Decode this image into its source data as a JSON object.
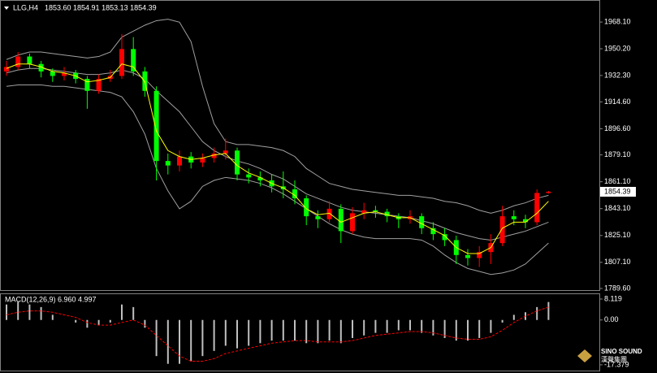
{
  "chart_data": {
    "type": "candlestick",
    "header": {
      "symbol": "LLG,H4",
      "ohlc": "1853.60 1854.91 1853.13 1854.39"
    },
    "up_color": "#ff0000",
    "down_color": "#00ff00",
    "band_color": "#a0a0a0",
    "ma_color": "#ffff00",
    "ylim": [
      1788.5,
      1974.7
    ],
    "yticks": [
      {
        "value": 1968.1,
        "label": "1968.10"
      },
      {
        "value": 1950.2,
        "label": "1950.20"
      },
      {
        "value": 1932.3,
        "label": "1932.30"
      },
      {
        "value": 1914.6,
        "label": "1914.60"
      },
      {
        "value": 1896.6,
        "label": "1896.60"
      },
      {
        "value": 1879.1,
        "label": "1879.10"
      },
      {
        "value": 1861.1,
        "label": "1861.10"
      },
      {
        "value": 1843.1,
        "label": "1843.10"
      },
      {
        "value": 1825.1,
        "label": "1825.10"
      },
      {
        "value": 1807.1,
        "label": "1807.10"
      },
      {
        "value": 1789.6,
        "label": "1789.60"
      }
    ],
    "last_price": {
      "value": 1854.39,
      "label": "1854.39"
    },
    "candles": [
      [
        1935,
        1942,
        1932,
        1938
      ],
      [
        1938,
        1948,
        1936,
        1945
      ],
      [
        1945,
        1947,
        1937,
        1940
      ],
      [
        1940,
        1942,
        1931,
        1935
      ],
      [
        1935,
        1937,
        1928,
        1932
      ],
      [
        1932,
        1938,
        1929,
        1934
      ],
      [
        1934,
        1936,
        1927,
        1930
      ],
      [
        1930,
        1932,
        1910,
        1922
      ],
      [
        1922,
        1933,
        1920,
        1930
      ],
      [
        1930,
        1936,
        1928,
        1932
      ],
      [
        1932,
        1960,
        1930,
        1950
      ],
      [
        1950,
        1958,
        1932,
        1935
      ],
      [
        1935,
        1938,
        1918,
        1922
      ],
      [
        1922,
        1925,
        1862,
        1875
      ],
      [
        1875,
        1880,
        1866,
        1872
      ],
      [
        1872,
        1882,
        1868,
        1878
      ],
      [
        1878,
        1881,
        1870,
        1874
      ],
      [
        1874,
        1880,
        1871,
        1877
      ],
      [
        1877,
        1884,
        1874,
        1880
      ],
      [
        1880,
        1890,
        1876,
        1882
      ],
      [
        1882,
        1884,
        1862,
        1866
      ],
      [
        1866,
        1870,
        1860,
        1864
      ],
      [
        1864,
        1868,
        1858,
        1862
      ],
      [
        1862,
        1866,
        1854,
        1858
      ],
      [
        1858,
        1868,
        1850,
        1856
      ],
      [
        1856,
        1862,
        1846,
        1850
      ],
      [
        1850,
        1852,
        1832,
        1838
      ],
      [
        1838,
        1842,
        1830,
        1836
      ],
      [
        1836,
        1848,
        1834,
        1843
      ],
      [
        1843,
        1846,
        1820,
        1828
      ],
      [
        1828,
        1844,
        1826,
        1840
      ],
      [
        1840,
        1847,
        1836,
        1842
      ],
      [
        1842,
        1845,
        1837,
        1841
      ],
      [
        1841,
        1843,
        1834,
        1838
      ],
      [
        1838,
        1840,
        1830,
        1836
      ],
      [
        1836,
        1842,
        1833,
        1838
      ],
      [
        1838,
        1840,
        1826,
        1830
      ],
      [
        1830,
        1834,
        1822,
        1826
      ],
      [
        1826,
        1830,
        1818,
        1822
      ],
      [
        1822,
        1825,
        1806,
        1812
      ],
      [
        1812,
        1816,
        1805,
        1810
      ],
      [
        1810,
        1818,
        1804,
        1814
      ],
      [
        1814,
        1826,
        1806,
        1820
      ],
      [
        1820,
        1845,
        1818,
        1838
      ],
      [
        1838,
        1842,
        1832,
        1836
      ],
      [
        1836,
        1839,
        1830,
        1834
      ],
      [
        1834,
        1856,
        1832,
        1853.6
      ],
      [
        1853.6,
        1854.91,
        1853.13,
        1854.39
      ]
    ],
    "upper": [
      1943,
      1946,
      1948,
      1948,
      1947,
      1946,
      1945,
      1944,
      1945,
      1948,
      1958,
      1962,
      1966,
      1969,
      1970,
      1968,
      1955,
      1925,
      1900,
      1888,
      1886,
      1886,
      1885,
      1884,
      1882,
      1878,
      1870,
      1865,
      1860,
      1858,
      1856,
      1855,
      1854,
      1853,
      1852,
      1852,
      1851,
      1850,
      1848,
      1847,
      1845,
      1842,
      1840,
      1842,
      1845,
      1847,
      1850,
      1852
    ],
    "middle": [
      1934,
      1936,
      1937,
      1937,
      1936,
      1935,
      1934,
      1933,
      1933,
      1934,
      1936,
      1934,
      1930,
      1922,
      1915,
      1908,
      1898,
      1888,
      1882,
      1878,
      1875,
      1873,
      1870,
      1866,
      1863,
      1858,
      1853,
      1850,
      1847,
      1844,
      1842,
      1841,
      1840,
      1839,
      1838,
      1837,
      1835,
      1833,
      1830,
      1827,
      1825,
      1823,
      1822,
      1824,
      1826,
      1828,
      1831,
      1834
    ],
    "lower": [
      1925,
      1926,
      1926,
      1926,
      1925,
      1925,
      1924,
      1923,
      1922,
      1921,
      1918,
      1908,
      1893,
      1870,
      1855,
      1843,
      1848,
      1858,
      1862,
      1864,
      1863,
      1862,
      1860,
      1857,
      1853,
      1848,
      1843,
      1838,
      1833,
      1829,
      1826,
      1824,
      1823,
      1823,
      1823,
      1823,
      1822,
      1818,
      1812,
      1807,
      1803,
      1801,
      1799,
      1800,
      1802,
      1806,
      1813,
      1820
    ],
    "ma": [
      1937,
      1940,
      1940,
      1938,
      1935,
      1934,
      1932,
      1928,
      1929,
      1931,
      1940,
      1938,
      1928,
      1895,
      1882,
      1878,
      1876,
      1877,
      1879,
      1880,
      1872,
      1867,
      1864,
      1860,
      1857,
      1852,
      1843,
      1839,
      1840,
      1834,
      1837,
      1840,
      1841,
      1839,
      1837,
      1837,
      1833,
      1829,
      1825,
      1817,
      1813,
      1813,
      1817,
      1830,
      1834,
      1834,
      1840,
      1848
    ],
    "macd": {
      "label": "MACD(12,26,9) 6.960 4.997",
      "ylim": [
        -19.3,
        10
      ],
      "yticks": [
        8.119,
        {
          "value": 0,
          "label": "0.00"
        },
        -17.379
      ],
      "hist_color": "#c0c0c0",
      "signal_color": "#ff0000",
      "hist": [
        6,
        7,
        6,
        5,
        2,
        0,
        -1,
        -3,
        -2,
        -1,
        6,
        5,
        -3,
        -14,
        -17,
        -17,
        -16,
        -14,
        -12,
        -10,
        -11,
        -10,
        -9,
        -8,
        -8,
        -8,
        -9,
        -9,
        -8,
        -9,
        -7,
        -6,
        -5,
        -5,
        -4,
        -4,
        -5,
        -6,
        -7,
        -8,
        -8,
        -7,
        -5,
        -1,
        2,
        3,
        5,
        6.96
      ],
      "signal": [
        2,
        3,
        3.5,
        3.5,
        3,
        2,
        1,
        -1,
        -2,
        -2,
        -1,
        0,
        -2,
        -6,
        -10,
        -14,
        -16,
        -16,
        -15,
        -13,
        -12,
        -11,
        -10,
        -9,
        -8.5,
        -8,
        -8,
        -8.5,
        -8.5,
        -8.5,
        -8,
        -7,
        -6,
        -5.5,
        -5,
        -4.5,
        -4.5,
        -5,
        -6,
        -7,
        -7.5,
        -7.5,
        -6.5,
        -4,
        -1,
        1.5,
        3.5,
        4.997
      ]
    },
    "logo": {
      "name": "SINO SOUND",
      "sub": "漢聲集團"
    }
  }
}
